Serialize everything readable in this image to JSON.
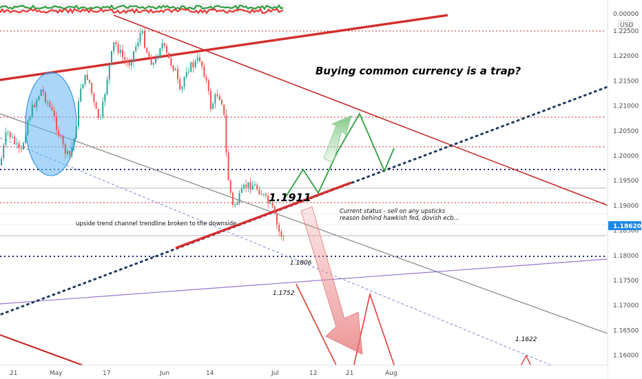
{
  "chart_data": {
    "type": "candlestick",
    "currency_badge": "USD",
    "current_price": "1.18620",
    "top_axis_value": "0.00000",
    "y_ticks": [
      "1.22500",
      "1.22000",
      "1.21500",
      "1.21000",
      "1.20500",
      "1.20000",
      "1.19500",
      "1.19000",
      "1.18500",
      "1.18000",
      "1.17500",
      "1.17000",
      "1.16500",
      "1.16000"
    ],
    "x_ticks": [
      "21",
      "May",
      "17",
      "Jun",
      "14",
      "Jul",
      "12",
      "21",
      "Aug"
    ],
    "annotations": {
      "title": "Buying common currency is a trap?",
      "level_1911": "1.1911",
      "level_1806": "1.1806",
      "level_1752": "1.1752",
      "level_1622": "1.1622",
      "status_line1": "Current status - sell on any upsticks",
      "status_line2": "reason behind hawkish fed, dovish ecb...",
      "trendline_note": "upside trend channel trendline broken to the downside"
    },
    "colors": {
      "up": "#26a69a",
      "down": "#ef5350",
      "resistance": "#d32f2f",
      "support": "#1a237e",
      "trendline": "#1e3a5f",
      "path_up": "#2e9e3e",
      "path_down": "#e53935"
    }
  }
}
